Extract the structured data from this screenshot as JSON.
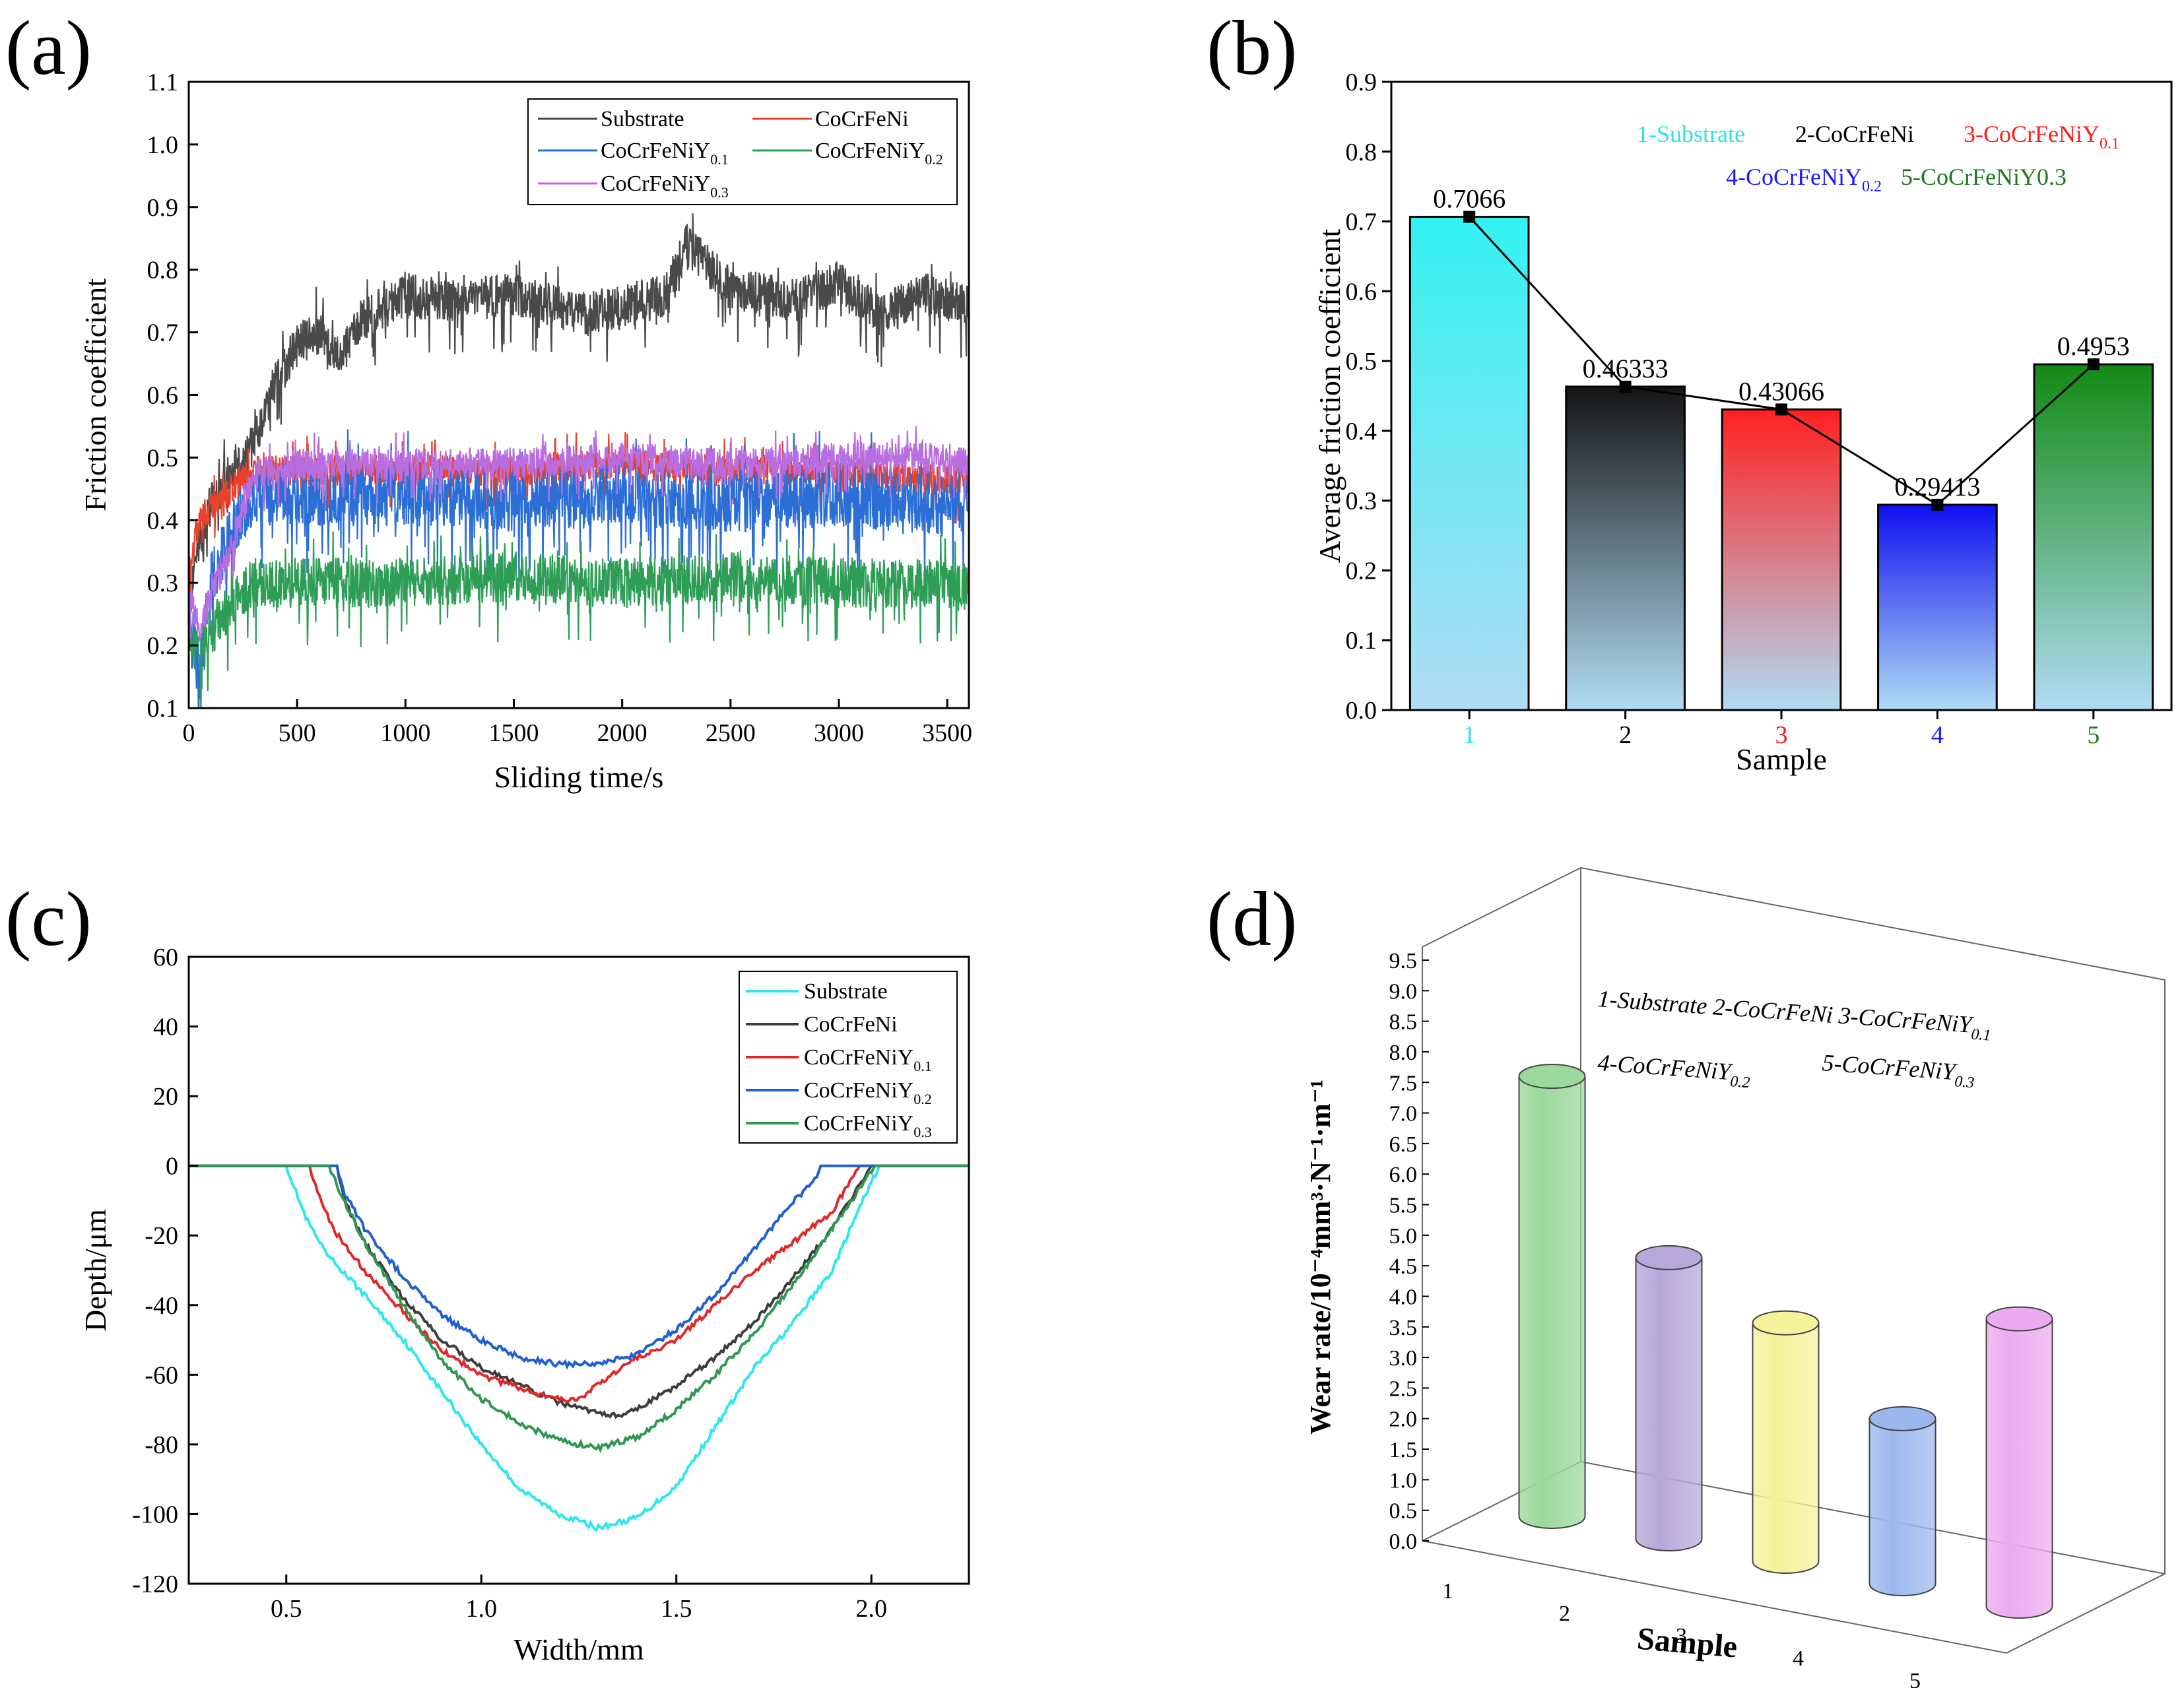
{
  "panels": {
    "a": "(a)",
    "b": "(b)",
    "c": "(c)",
    "d": "(d)"
  },
  "chart_data": [
    {
      "id": "a",
      "type": "line",
      "xlabel": "Sliding time/s",
      "ylabel": "Friction coefficient",
      "xlim": [
        0,
        3600
      ],
      "ylim": [
        0.1,
        1.1
      ],
      "xticks": [
        0,
        500,
        1000,
        1500,
        2000,
        2500,
        3000,
        3500
      ],
      "yticks": [
        "0.1",
        "0.2",
        "0.3",
        "0.4",
        "0.5",
        "0.6",
        "0.7",
        "0.8",
        "0.9",
        "1.0",
        "1.1"
      ],
      "legend_position": "top-right",
      "series": [
        {
          "name": "Substrate",
          "sub": "",
          "color": "#4a4a4a",
          "x": [
            0,
            50,
            100,
            200,
            300,
            400,
            500,
            600,
            700,
            800,
            1000,
            1200,
            1500,
            1800,
            2000,
            2200,
            2300,
            2500,
            2800,
            3000,
            3200,
            3400,
            3600
          ],
          "y": [
            0.25,
            0.38,
            0.42,
            0.48,
            0.52,
            0.62,
            0.68,
            0.7,
            0.66,
            0.72,
            0.76,
            0.75,
            0.76,
            0.73,
            0.74,
            0.76,
            0.84,
            0.77,
            0.75,
            0.78,
            0.73,
            0.76,
            0.74
          ],
          "amp": 0.035
        },
        {
          "name": "CoCrFeNi",
          "sub": "",
          "color": "#e8412c",
          "x": [
            0,
            50,
            100,
            200,
            300,
            500,
            1000,
            1500,
            2000,
            2500,
            3000,
            3500,
            3600
          ],
          "y": [
            0.33,
            0.4,
            0.42,
            0.45,
            0.48,
            0.48,
            0.48,
            0.48,
            0.49,
            0.48,
            0.48,
            0.46,
            0.46
          ],
          "amp": 0.025
        },
        {
          "name": "CoCrFeNiY",
          "sub": "0.1",
          "color": "#2b6fd6",
          "x": [
            0,
            50,
            100,
            200,
            300,
            500,
            1000,
            1500,
            2000,
            2500,
            3000,
            3500,
            3600
          ],
          "y": [
            0.25,
            0.15,
            0.3,
            0.38,
            0.44,
            0.44,
            0.44,
            0.43,
            0.44,
            0.43,
            0.44,
            0.42,
            0.43
          ],
          "amp": 0.05
        },
        {
          "name": "CoCrFeNiY",
          "sub": "0.2",
          "color": "#2e9e57",
          "x": [
            0,
            50,
            100,
            200,
            300,
            500,
            1000,
            1500,
            2000,
            2500,
            3000,
            3500,
            3600
          ],
          "y": [
            0.22,
            0.18,
            0.22,
            0.27,
            0.3,
            0.3,
            0.3,
            0.31,
            0.3,
            0.31,
            0.3,
            0.3,
            0.29
          ],
          "amp": 0.04
        },
        {
          "name": "CoCrFeNiY",
          "sub": "0.3",
          "color": "#b86ee0",
          "x": [
            0,
            50,
            100,
            200,
            300,
            500,
            1000,
            1500,
            2000,
            2500,
            3000,
            3500,
            3600
          ],
          "y": [
            0.28,
            0.22,
            0.28,
            0.36,
            0.47,
            0.49,
            0.49,
            0.49,
            0.5,
            0.49,
            0.5,
            0.5,
            0.49
          ],
          "amp": 0.025
        }
      ]
    },
    {
      "id": "b",
      "type": "bar",
      "xlabel": "Sample",
      "ylabel": "Average friction coefficient",
      "categories": [
        "1",
        "2",
        "3",
        "4",
        "5"
      ],
      "category_colors": [
        "#30e0e8",
        "#000000",
        "#ff1a1a",
        "#1a1aff",
        "#1a7a1a"
      ],
      "values": [
        0.7066,
        0.46333,
        0.43066,
        0.29413,
        0.4953
      ],
      "value_labels": [
        "0.7066",
        "0.46333",
        "0.43066",
        "0.29413",
        "0.4953"
      ],
      "bar_top_colors": [
        "#33f2f2",
        "#151515",
        "#ff2020",
        "#1010f0",
        "#138a13"
      ],
      "bar_bottom_color": "#b0dcf4",
      "ylim": [
        0,
        0.9
      ],
      "yticks": [
        "0.0",
        "0.1",
        "0.2",
        "0.3",
        "0.4",
        "0.5",
        "0.6",
        "0.7",
        "0.8",
        "0.9"
      ],
      "legend_rows": [
        [
          {
            "text": "1-Substrate",
            "sub": "",
            "color": "#30e0e8"
          },
          {
            "text": "2-CoCrFeNi",
            "sub": "",
            "color": "#000000"
          },
          {
            "text": "3-CoCrFeNiY",
            "sub": "0.1",
            "color": "#ff1a1a"
          }
        ],
        [
          {
            "text": "4-CoCrFeNiY",
            "sub": "0.2",
            "color": "#1a1aff"
          },
          {
            "text": "5-CoCrFeNiY0.3",
            "sub": "",
            "color": "#1a7a1a"
          }
        ]
      ]
    },
    {
      "id": "c",
      "type": "line",
      "xlabel": "Width/mm",
      "ylabel": "Depth/μm",
      "xlim": [
        0.25,
        2.25
      ],
      "ylim": [
        -120,
        60
      ],
      "xticks": [
        "0.5",
        "1.0",
        "1.5",
        "2.0"
      ],
      "yticks": [
        "-120",
        "-100",
        "-80",
        "-60",
        "-40",
        "-20",
        "0",
        "20",
        "40",
        "60"
      ],
      "legend_position": "top-right",
      "series": [
        {
          "name": "Substrate",
          "sub": "",
          "color": "#2ee6ee",
          "x": [
            0.25,
            0.5,
            0.55,
            0.6,
            0.7,
            0.8,
            0.9,
            1.0,
            1.1,
            1.2,
            1.3,
            1.4,
            1.5,
            1.6,
            1.7,
            1.8,
            1.9,
            1.97,
            2.02,
            2.25
          ],
          "y": [
            0,
            0,
            -15,
            -25,
            -37,
            -50,
            -65,
            -80,
            -93,
            -100,
            -104,
            -101,
            -92,
            -75,
            -58,
            -45,
            -30,
            -12,
            0,
            0
          ]
        },
        {
          "name": "CoCrFeNi",
          "sub": "",
          "color": "#3d3d3d",
          "x": [
            0.25,
            0.63,
            0.65,
            0.7,
            0.8,
            0.9,
            1.0,
            1.1,
            1.2,
            1.3,
            1.35,
            1.4,
            1.5,
            1.6,
            1.7,
            1.8,
            1.9,
            2.0,
            2.25
          ],
          "y": [
            0,
            0,
            -10,
            -22,
            -38,
            -50,
            -58,
            -63,
            -68,
            -71,
            -72,
            -70,
            -63,
            -55,
            -45,
            -32,
            -18,
            0,
            0
          ]
        },
        {
          "name": "CoCrFeNiY",
          "sub": "0.1",
          "color": "#e02828",
          "x": [
            0.25,
            0.56,
            0.58,
            0.62,
            0.7,
            0.8,
            0.9,
            1.0,
            1.1,
            1.2,
            1.25,
            1.3,
            1.4,
            1.5,
            1.6,
            1.7,
            1.8,
            1.9,
            1.97,
            2.25
          ],
          "y": [
            0,
            0,
            -8,
            -18,
            -30,
            -42,
            -53,
            -60,
            -64,
            -67,
            -67,
            -63,
            -55,
            -50,
            -40,
            -30,
            -22,
            -13,
            0,
            0
          ]
        },
        {
          "name": "CoCrFeNiY",
          "sub": "0.2",
          "color": "#1f5fd0",
          "x": [
            0.25,
            0.63,
            0.65,
            0.7,
            0.8,
            0.9,
            1.0,
            1.1,
            1.2,
            1.3,
            1.4,
            1.5,
            1.6,
            1.7,
            1.8,
            1.85,
            1.87,
            2.25
          ],
          "y": [
            0,
            0,
            -8,
            -18,
            -32,
            -43,
            -50,
            -55,
            -57,
            -57,
            -54,
            -47,
            -37,
            -24,
            -10,
            -5,
            0,
            0
          ]
        },
        {
          "name": "CoCrFeNiY",
          "sub": "0.3",
          "color": "#2e9850",
          "x": [
            0.25,
            0.61,
            0.64,
            0.7,
            0.8,
            0.9,
            1.0,
            1.1,
            1.2,
            1.3,
            1.4,
            1.5,
            1.6,
            1.7,
            1.8,
            1.9,
            2.01,
            2.25
          ],
          "y": [
            0,
            0,
            -8,
            -22,
            -40,
            -56,
            -67,
            -74,
            -79,
            -81,
            -78,
            -70,
            -60,
            -48,
            -34,
            -18,
            0,
            0
          ]
        }
      ]
    },
    {
      "id": "d",
      "type": "bar",
      "xlabel": "Sample",
      "ylabel": "Wear rate/10⁻⁴mm³·N⁻¹·m⁻¹",
      "categories": [
        "1",
        "2",
        "3",
        "4",
        "5"
      ],
      "values": [
        7.2,
        4.6,
        3.9,
        2.7,
        4.7
      ],
      "bar_colors": [
        "#9bd89b",
        "#b6a8d8",
        "#f6f29a",
        "#9bb8ee",
        "#ecaaf0"
      ],
      "ylim": [
        0,
        9.5
      ],
      "yticks": [
        "0.0",
        "0.5",
        "1.0",
        "1.5",
        "2.0",
        "2.5",
        "3.0",
        "3.5",
        "4.0",
        "4.5",
        "5.0",
        "5.5",
        "6.0",
        "6.5",
        "7.0",
        "7.5",
        "8.0",
        "8.5",
        "9.0",
        "9.5"
      ],
      "legend_rows": [
        [
          {
            "text": "1-Substrate 2-CoCrFeNi 3-CoCrFeNiY",
            "sub": "0.1"
          }
        ],
        [
          {
            "text": "4-CoCrFeNiY",
            "sub": "0.2"
          },
          {
            "text": "5-CoCrFeNiY",
            "sub": "0.3"
          }
        ]
      ]
    }
  ]
}
